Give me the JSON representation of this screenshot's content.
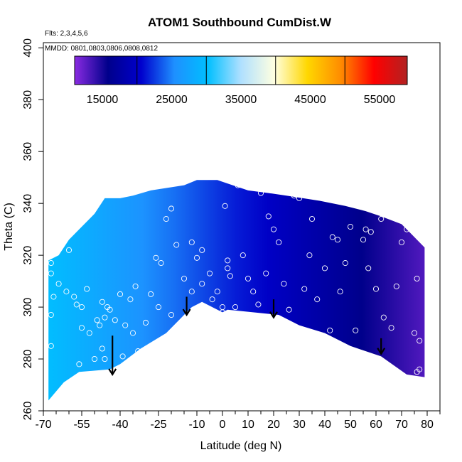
{
  "chart_data": {
    "type": "heatmap",
    "title": "ATOM1 Southbound CumDist.W",
    "annotations": [
      "Flts: 2,3,4,5,6",
      "MMDD: 0801,0803,0806,0808,0812"
    ],
    "xlabel": "Latitude (deg N)",
    "ylabel": "Theta (C)",
    "xlim": [
      -70,
      85
    ],
    "ylim": [
      260,
      402
    ],
    "x_tick_labels": [
      "-70",
      "-55",
      "-40",
      "-25",
      "-10",
      "0",
      "10",
      "20",
      "30",
      "40",
      "50",
      "60",
      "70",
      "80"
    ],
    "x_ticks_major": [
      -70,
      -55,
      -40,
      -25,
      -10,
      0,
      10,
      20,
      30,
      40,
      50,
      60,
      70,
      80
    ],
    "x_ticks_minor": [
      -65,
      -60,
      -50,
      -45,
      -35,
      -30,
      -20,
      -15,
      -5,
      5,
      15,
      25,
      35,
      45,
      55,
      65,
      75,
      85
    ],
    "y_tick_labels": [
      "260",
      "280",
      "300",
      "320",
      "340",
      "360",
      "380",
      "400"
    ],
    "y_ticks": [
      260,
      280,
      300,
      320,
      340,
      360,
      380,
      400
    ],
    "colorbar": {
      "label_values": [
        "15000",
        "25000",
        "35000",
        "45000",
        "55000"
      ],
      "range": [
        11000,
        59000
      ],
      "box_boundaries": [
        20000,
        30000,
        40000,
        50000
      ],
      "colors": [
        "#8a2be2",
        "#00008b",
        "#0000cd",
        "#1e90ff",
        "#00bfff",
        "#b0e0ff",
        "#ffffe0",
        "#ffd700",
        "#ff8c00",
        "#ff0000",
        "#b22222"
      ]
    },
    "data_region": {
      "top_boundary": [
        [
          -68,
          318
        ],
        [
          -64,
          320
        ],
        [
          -60,
          326
        ],
        [
          -56,
          330
        ],
        [
          -50,
          336
        ],
        [
          -46,
          342
        ],
        [
          -40,
          342
        ],
        [
          -35,
          343
        ],
        [
          -28,
          345
        ],
        [
          -15,
          347
        ],
        [
          -10,
          349
        ],
        [
          -2,
          349
        ],
        [
          4,
          347
        ],
        [
          10,
          345
        ],
        [
          18,
          344
        ],
        [
          25,
          343
        ],
        [
          38,
          341
        ],
        [
          48,
          339
        ],
        [
          56,
          337
        ],
        [
          62,
          335
        ],
        [
          70,
          332
        ],
        [
          74,
          328
        ],
        [
          79,
          323
        ]
      ],
      "bottom_boundary": [
        [
          79,
          273
        ],
        [
          72,
          274
        ],
        [
          62,
          281
        ],
        [
          50,
          285
        ],
        [
          40,
          290
        ],
        [
          30,
          293
        ],
        [
          22,
          297
        ],
        [
          12,
          298
        ],
        [
          2,
          299
        ],
        [
          0,
          298
        ],
        [
          -8,
          302
        ],
        [
          -12,
          300
        ],
        [
          -15,
          297
        ],
        [
          -22,
          290
        ],
        [
          -32,
          284
        ],
        [
          -40,
          278
        ],
        [
          -44,
          276
        ],
        [
          -56,
          275
        ],
        [
          -62,
          271
        ],
        [
          -68,
          264
        ]
      ],
      "value_range_west_to_east": [
        30000,
        13000
      ]
    },
    "arrows": [
      {
        "lat": -43,
        "theta_tail": 289,
        "theta_head": 274
      },
      {
        "lat": -14,
        "theta_tail": 304,
        "theta_head": 297
      },
      {
        "lat": 20,
        "theta_tail": 303,
        "theta_head": 296
      },
      {
        "lat": 62,
        "theta_tail": 288,
        "theta_head": 282
      }
    ],
    "points": [
      [
        -67,
        317
      ],
      [
        -66,
        304
      ],
      [
        -64,
        309
      ],
      [
        -61,
        306
      ],
      [
        -58,
        304
      ],
      [
        -57,
        301
      ],
      [
        -55,
        300
      ],
      [
        -53,
        307
      ],
      [
        -60,
        322
      ],
      [
        -63,
        324
      ],
      [
        -67,
        313
      ],
      [
        -67,
        297
      ],
      [
        -67,
        285
      ],
      [
        -56,
        278
      ],
      [
        -50,
        280
      ],
      [
        -49,
        295
      ],
      [
        -47,
        302
      ],
      [
        -46,
        296
      ],
      [
        -45,
        300
      ],
      [
        -44,
        299
      ],
      [
        -42,
        295
      ],
      [
        -40,
        305
      ],
      [
        -38,
        293
      ],
      [
        -39,
        281
      ],
      [
        -36,
        303
      ],
      [
        -34,
        308
      ],
      [
        -33,
        283
      ],
      [
        -30,
        294
      ],
      [
        -28,
        305
      ],
      [
        -26,
        319
      ],
      [
        -24,
        317
      ],
      [
        -22,
        334
      ],
      [
        -20,
        338
      ],
      [
        -18,
        324
      ],
      [
        -15,
        311
      ],
      [
        -12,
        325
      ],
      [
        -10,
        319
      ],
      [
        -8,
        322
      ],
      [
        -4,
        303
      ],
      [
        -2,
        306
      ],
      [
        0,
        300
      ],
      [
        0,
        298
      ],
      [
        1,
        339
      ],
      [
        2,
        318
      ],
      [
        2,
        315
      ],
      [
        3,
        312
      ],
      [
        5,
        300
      ],
      [
        6,
        347
      ],
      [
        8,
        320
      ],
      [
        10,
        311
      ],
      [
        12,
        306
      ],
      [
        14,
        301
      ],
      [
        15,
        344
      ],
      [
        17,
        313
      ],
      [
        18,
        335
      ],
      [
        20,
        330
      ],
      [
        22,
        325
      ],
      [
        24,
        309
      ],
      [
        26,
        299
      ],
      [
        28,
        343
      ],
      [
        30,
        342
      ],
      [
        32,
        307
      ],
      [
        34,
        320
      ],
      [
        35,
        334
      ],
      [
        37,
        303
      ],
      [
        40,
        315
      ],
      [
        42,
        291
      ],
      [
        43,
        327
      ],
      [
        45,
        326
      ],
      [
        46,
        306
      ],
      [
        48,
        317
      ],
      [
        50,
        331
      ],
      [
        52,
        291
      ],
      [
        55,
        326
      ],
      [
        56,
        330
      ],
      [
        57,
        315
      ],
      [
        58,
        329
      ],
      [
        60,
        307
      ],
      [
        62,
        334
      ],
      [
        63,
        296
      ],
      [
        66,
        292
      ],
      [
        68,
        308
      ],
      [
        70,
        325
      ],
      [
        72,
        330
      ],
      [
        75,
        334
      ],
      [
        76,
        311
      ],
      [
        77,
        287
      ],
      [
        77,
        276
      ],
      [
        77,
        272
      ],
      [
        76,
        275
      ],
      [
        75,
        290
      ],
      [
        -48,
        293
      ],
      [
        -52,
        290
      ],
      [
        -55,
        292
      ],
      [
        -47,
        284
      ],
      [
        -46,
        280
      ],
      [
        -35,
        290
      ],
      [
        -25,
        300
      ],
      [
        -20,
        297
      ],
      [
        -18,
        288
      ],
      [
        -12,
        306
      ],
      [
        -8,
        309
      ],
      [
        -5,
        313
      ]
    ]
  }
}
